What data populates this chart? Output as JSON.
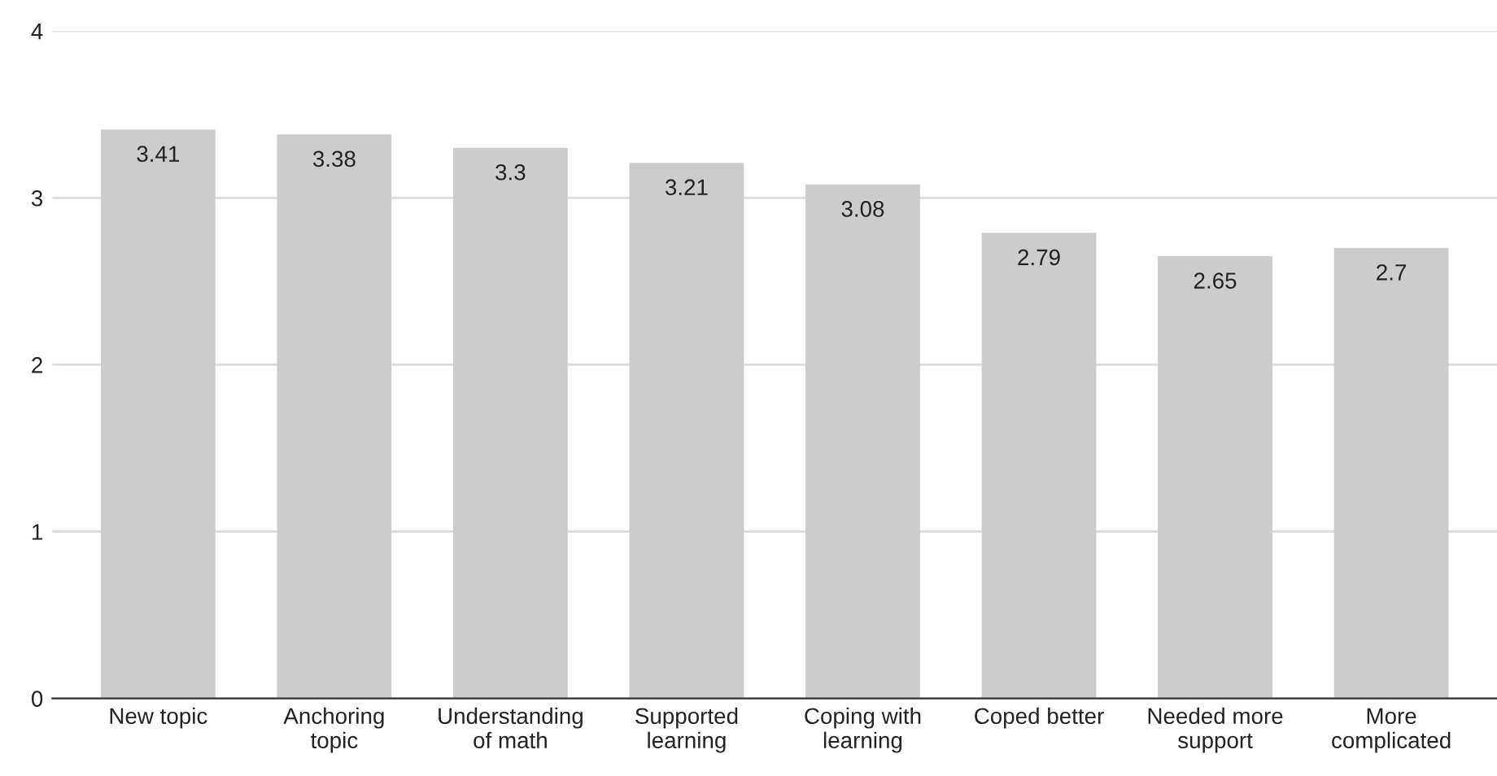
{
  "chart_data": {
    "type": "bar",
    "categories": [
      "New topic",
      "Anchoring topic",
      "Understanding of math",
      "Supported learning",
      "Coping with learning",
      "Coped better",
      "Needed more support",
      "More complicated"
    ],
    "values": [
      3.41,
      3.38,
      3.3,
      3.21,
      3.08,
      2.79,
      2.65,
      2.7
    ],
    "color": "#cccccc",
    "ylim": [
      0,
      4
    ],
    "yticks": [
      0,
      1,
      2,
      3,
      4
    ],
    "grid": "y",
    "data_labels": true
  }
}
